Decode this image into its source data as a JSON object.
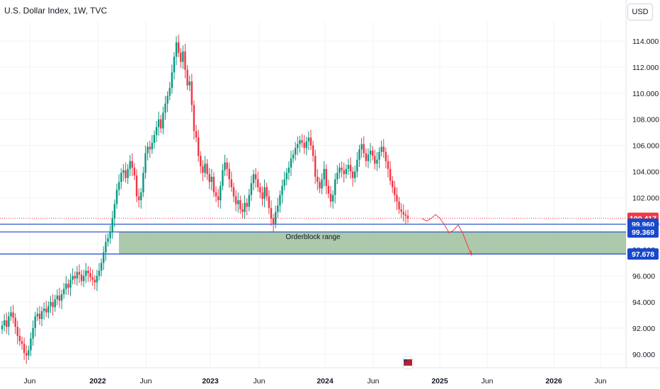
{
  "header": {
    "title": "U.S. Dollar Index, 1W, TVC",
    "currency": "USD"
  },
  "colors": {
    "up": "#089981",
    "down": "#f23645",
    "level_line": "#1848cc",
    "zone_fill": "#9dbf9d",
    "projection": "#f23645"
  },
  "chart_data": {
    "type": "candlestick",
    "ylim": [
      89,
      115.5
    ],
    "yticks": [
      "114.000",
      "112.000",
      "110.000",
      "108.000",
      "106.000",
      "104.000",
      "102.000",
      "100.000",
      "98.000",
      "96.000",
      "94.000",
      "92.000",
      "90.000"
    ],
    "xticks": [
      "Jun",
      "2022",
      "Jun",
      "2023",
      "Jun",
      "2024",
      "Jun",
      "2025",
      "Jun",
      "2026",
      "Jun"
    ],
    "grid": true,
    "close_series": [
      92.2,
      92.6,
      92.1,
      92.9,
      93.2,
      92.8,
      92.1,
      91.4,
      91.0,
      90.8,
      90.1,
      89.9,
      90.3,
      91.2,
      92.0,
      92.9,
      93.1,
      92.7,
      93.3,
      93.5,
      93.2,
      93.7,
      94.0,
      93.6,
      94.2,
      94.5,
      94.1,
      94.6,
      95.0,
      95.4,
      95.1,
      95.7,
      96.0,
      95.8,
      96.3,
      96.1,
      95.6,
      96.0,
      96.4,
      96.2,
      95.9,
      95.7,
      95.5,
      96.0,
      96.4,
      97.0,
      97.8,
      98.6,
      98.9,
      99.4,
      100.4,
      101.5,
      102.6,
      103.2,
      103.9,
      104.1,
      103.5,
      104.2,
      104.8,
      104.3,
      103.7,
      102.1,
      101.8,
      102.4,
      103.9,
      105.4,
      105.9,
      105.7,
      106.2,
      106.8,
      107.4,
      108.0,
      107.3,
      108.5,
      109.2,
      109.8,
      110.4,
      111.6,
      112.8,
      113.9,
      113.1,
      112.4,
      113.2,
      111.8,
      110.6,
      110.9,
      109.1,
      107.1,
      106.6,
      105.2,
      104.4,
      103.9,
      104.6,
      103.8,
      103.2,
      103.6,
      102.4,
      102.1,
      101.8,
      102.9,
      104.1,
      104.7,
      104.2,
      103.4,
      102.8,
      102.1,
      101.5,
      101.8,
      101.1,
      100.9,
      101.6,
      101.3,
      102.2,
      103.1,
      103.8,
      103.4,
      102.8,
      102.4,
      101.9,
      102.8,
      102.1,
      101.2,
      100.4,
      100.0,
      100.9,
      101.4,
      102.2,
      102.9,
      103.4,
      103.9,
      104.3,
      105.0,
      105.3,
      105.8,
      106.1,
      106.4,
      106.2,
      105.8,
      106.3,
      106.6,
      106.0,
      105.2,
      103.6,
      103.2,
      102.7,
      103.4,
      104.2,
      102.9,
      102.3,
      101.7,
      102.2,
      103.4,
      103.9,
      104.3,
      104.1,
      103.8,
      104.2,
      104.5,
      104.0,
      103.5,
      104.0,
      104.9,
      105.7,
      106.1,
      105.4,
      104.8,
      105.3,
      105.6,
      105.2,
      104.6,
      104.9,
      105.5,
      105.9,
      105.5,
      104.8,
      104.2,
      103.3,
      102.8,
      102.2,
      101.7,
      101.1,
      100.9,
      100.7,
      100.6,
      100.4
    ],
    "orderblock": {
      "top": 99.369,
      "bottom": 97.678,
      "label": "Orderblock range"
    },
    "levels": [
      99.96,
      99.369,
      97.678
    ],
    "current_price": 100.417,
    "projection": [
      100.4,
      100.2,
      100.4,
      100.7,
      100.4,
      99.9,
      99.3,
      99.5,
      99.9,
      99.3,
      98.4,
      97.6
    ],
    "price_labels": [
      {
        "text": "100.417",
        "value": 100.417,
        "color": "#f23645"
      },
      {
        "text": "99.960",
        "value": 99.96,
        "color": "#1848cc"
      },
      {
        "text": "99.369",
        "value": 99.369,
        "color": "#1848cc"
      },
      {
        "text": "97.678",
        "value": 97.678,
        "color": "#1848cc"
      }
    ]
  }
}
